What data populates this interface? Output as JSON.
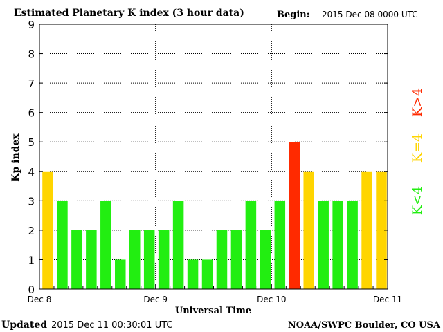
{
  "title": "Estimated Planetary K index (3 hour data)",
  "begin_label": "Begin:",
  "begin_value": "2015 Dec 08 0000 UTC",
  "updated_label": "Updated",
  "updated_value": "2015 Dec 11 00:30:01 UTC",
  "credit": "NOAA/SWPC Boulder, CO USA",
  "legend": [
    {
      "label": "K<4",
      "color": "#22ee11"
    },
    {
      "label": "K=4",
      "color": "#ffd500"
    },
    {
      "label": "K>4",
      "color": "#ff2a00"
    }
  ],
  "colors": {
    "below4": "#22ee11",
    "equal4": "#ffd500",
    "above4": "#ff2a00",
    "axis": "#000000",
    "grid": "#000000"
  },
  "chart_data": {
    "type": "bar",
    "title": "Estimated Planetary K index (3 hour data)",
    "xlabel": "Universal Time",
    "ylabel": "Kp index",
    "ylim": [
      0,
      9
    ],
    "yticks": [
      0,
      1,
      2,
      3,
      4,
      5,
      6,
      7,
      8,
      9
    ],
    "xticks": [
      "Dec 8",
      "Dec 9",
      "Dec 10",
      "Dec 11"
    ],
    "grid": true,
    "values": [
      4,
      3,
      2,
      2,
      3,
      1,
      2,
      2,
      2,
      3,
      1,
      1,
      2,
      2,
      3,
      2,
      3,
      5,
      4,
      3,
      3,
      3,
      4,
      4
    ]
  }
}
